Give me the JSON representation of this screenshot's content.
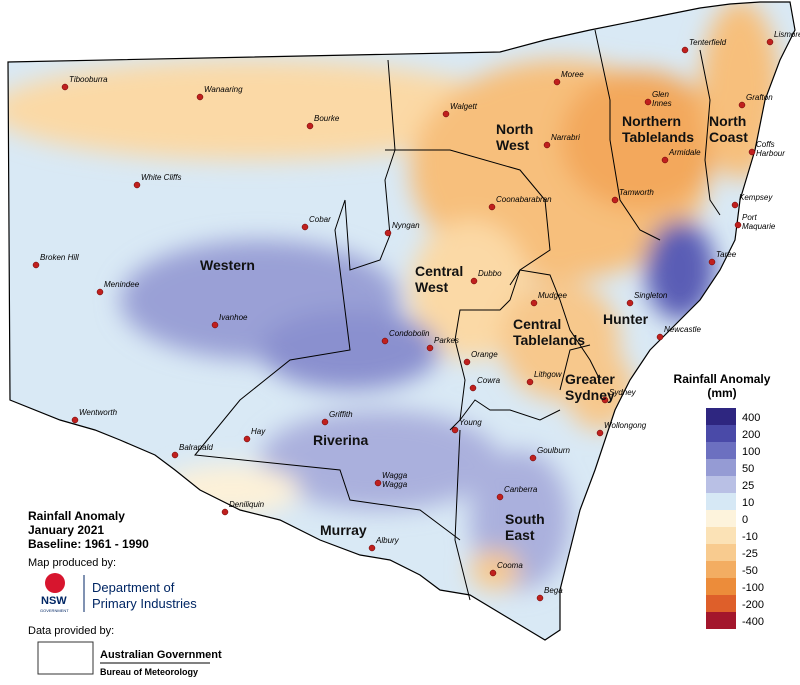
{
  "towns": [
    "Tibooburra",
    "Wanaaring",
    "Bourke",
    "White Cliffs",
    "Cobar",
    "Nyngan",
    "Broken Hill",
    "Menindee",
    "Ivanhoe",
    "Condobolin",
    "Parkes",
    "Wentworth",
    "Balranald",
    "Hay",
    "Griffith",
    "Deniliquin",
    "Wagga\nWagga",
    "Albury",
    "Moree",
    "Walgett",
    "Narrabri",
    "Coonabarabran",
    "Tamworth",
    "Glen\nInnes",
    "Tenterfield",
    "Lismore",
    "Grafton",
    "Armidale",
    "Coffs\nHarbour",
    "Kempsey",
    "Port\nMaquarie",
    "Taree",
    "Dubbo",
    "Mudgee",
    "Singleton",
    "Newcastle",
    "Orange",
    "Lithgow",
    "Cowra",
    "Sydney",
    "Young",
    "Wollongong",
    "Goulburn",
    "Canberra",
    "Cooma",
    "Bega"
  ],
  "regions": [
    [
      "Western"
    ],
    [
      "North",
      "West"
    ],
    [
      "Northern",
      "Tablelands"
    ],
    [
      "North",
      "Coast"
    ],
    [
      "Central",
      "West"
    ],
    [
      "Central",
      "Tablelands"
    ],
    [
      "Hunter"
    ],
    [
      "Greater",
      "Sydney"
    ],
    [
      "Riverina"
    ],
    [
      "Murray"
    ],
    [
      "South",
      "East"
    ]
  ],
  "legend": {
    "title": [
      "Rainfall Anomaly",
      "(mm)"
    ],
    "items": [
      {
        "label": "400",
        "color": "#2e2680"
      },
      {
        "label": "200",
        "color": "#4a4aa8"
      },
      {
        "label": "100",
        "color": "#6c70c0"
      },
      {
        "label": "50",
        "color": "#959bd4"
      },
      {
        "label": "25",
        "color": "#b9c0e5"
      },
      {
        "label": "10",
        "color": "#d6e8f5"
      },
      {
        "label": "0",
        "color": "#fdf3dc"
      },
      {
        "label": "-10",
        "color": "#fbe2b6"
      },
      {
        "label": "-25",
        "color": "#f8cb8f"
      },
      {
        "label": "-50",
        "color": "#f3ad62"
      },
      {
        "label": "-100",
        "color": "#ec8c3a"
      },
      {
        "label": "-200",
        "color": "#de5f2a"
      },
      {
        "label": "-400",
        "color": "#a3162c"
      }
    ]
  },
  "info": {
    "title": "Rainfall Anomaly",
    "period": "January 2021",
    "baseline": "Baseline: 1961 - 1990",
    "produced_by": "Map produced by:",
    "nsw": "NSW",
    "government": "GOVERNMENT",
    "department": [
      "Department of",
      "Primary Industries"
    ],
    "data_by": "Data provided by:",
    "agency": [
      "Australian Government",
      "Bureau of Meteorology"
    ]
  }
}
